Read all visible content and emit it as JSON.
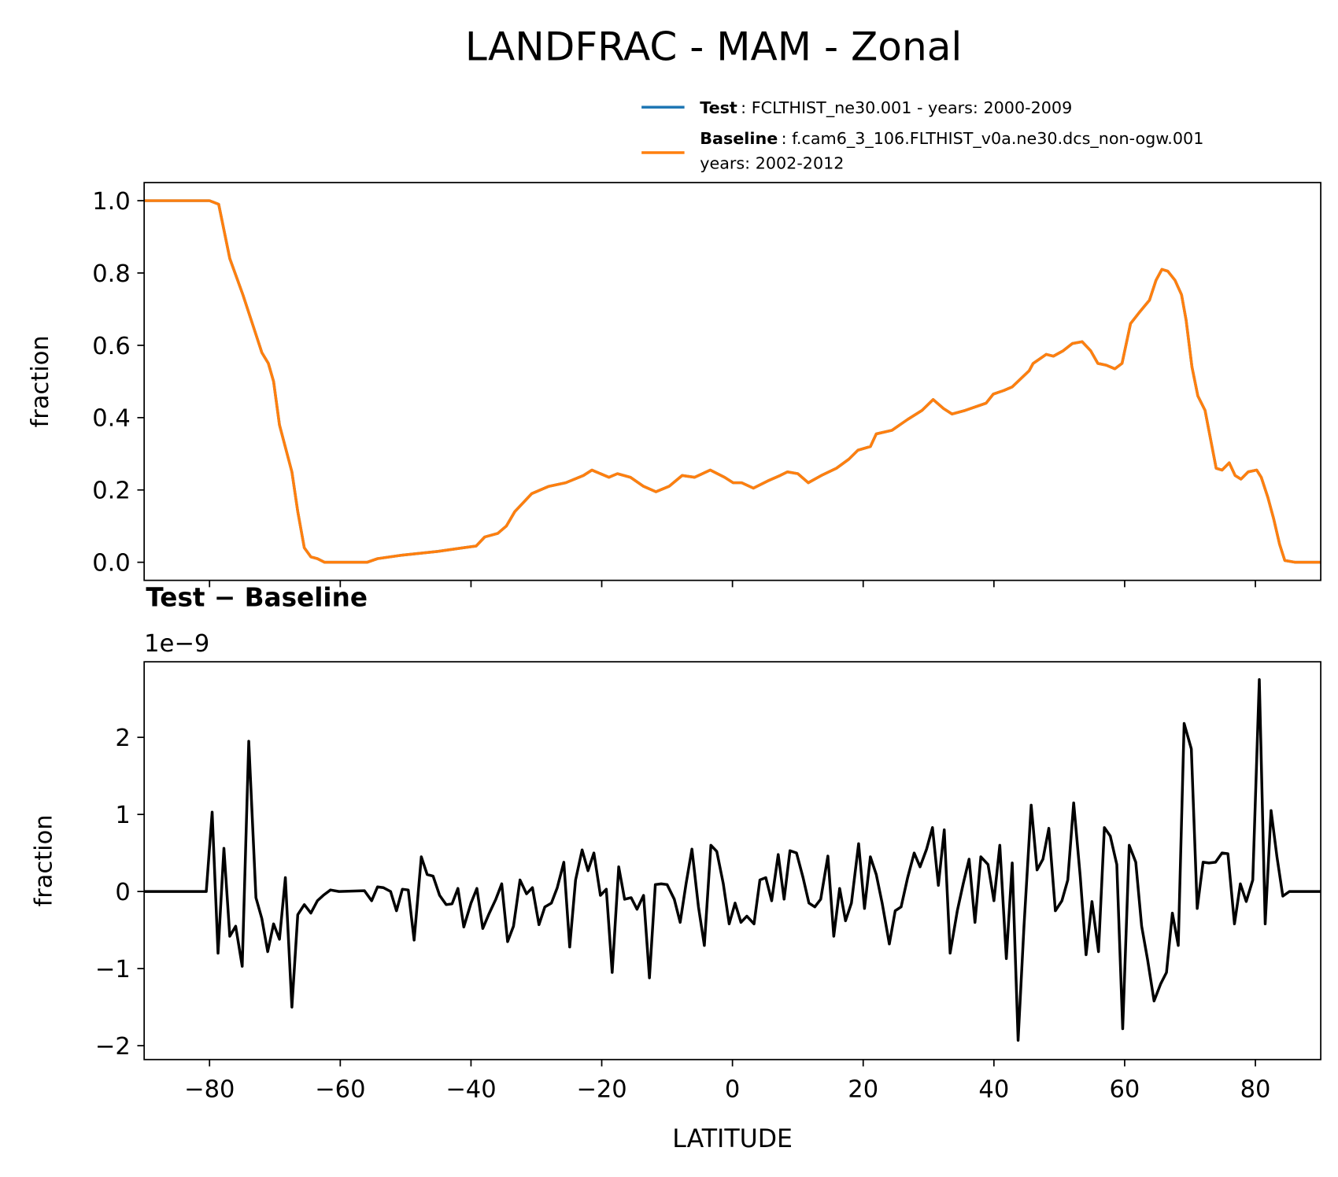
{
  "chart_data": [
    {
      "type": "line",
      "title": "LANDFRAC - MAM - Zonal",
      "ylabel": "fraction",
      "x": [
        -90,
        -80,
        -78.6,
        -76.9,
        -74.9,
        -72.9,
        -72,
        -71,
        -70.2,
        -69.3,
        -67.4,
        -66.5,
        -65.5,
        -64.5,
        -63.5,
        -62.4,
        -55.9,
        -54.3,
        -50.4,
        -45.1,
        -41.2,
        -39.2,
        -37.9,
        -35.9,
        -34.6,
        -33.3,
        -30.7,
        -28.1,
        -25.5,
        -22.8,
        -21.5,
        -18.9,
        -17.6,
        -15.6,
        -13.6,
        -11.7,
        -9.7,
        -7.7,
        -5.8,
        -3.4,
        -1.2,
        0.1,
        1.4,
        3.2,
        5.4,
        7.3,
        8.4,
        10,
        11.6,
        13.6,
        15.9,
        17.8,
        19.2,
        21.1,
        22,
        24.4,
        26.8,
        29,
        30.7,
        32.3,
        33.6,
        35.6,
        38.8,
        39.9,
        41.5,
        42.8,
        45.4,
        46,
        48,
        49.1,
        50.6,
        52,
        53.5,
        54.8,
        55.9,
        57.2,
        58.5,
        59.6,
        60.9,
        62.2,
        63.8,
        64.8,
        65.7,
        66.6,
        67.7,
        68.7,
        69.4,
        70.3,
        71.2,
        72.3,
        74,
        74.9,
        76,
        76.9,
        77.8,
        78.9,
        80.2,
        80.9,
        81.9,
        82.8,
        83.7,
        84.5,
        86.1,
        90
      ],
      "series": [
        {
          "name": "Test",
          "description": [
            ": FCLTHIST_ne30.001 - years: 2000-2009"
          ],
          "color": "#1f77b4",
          "values": [
            1,
            1,
            0.99,
            0.84,
            0.74,
            0.63,
            0.58,
            0.55,
            0.5,
            0.38,
            0.25,
            0.14,
            0.04,
            0.015,
            0.01,
            0,
            0,
            0.01,
            0.02,
            0.03,
            0.04,
            0.045,
            0.07,
            0.08,
            0.1,
            0.14,
            0.19,
            0.21,
            0.22,
            0.24,
            0.255,
            0.235,
            0.245,
            0.235,
            0.21,
            0.195,
            0.21,
            0.24,
            0.235,
            0.255,
            0.235,
            0.22,
            0.22,
            0.205,
            0.225,
            0.24,
            0.25,
            0.245,
            0.22,
            0.24,
            0.26,
            0.285,
            0.31,
            0.32,
            0.355,
            0.365,
            0.395,
            0.42,
            0.45,
            0.425,
            0.41,
            0.42,
            0.44,
            0.465,
            0.475,
            0.485,
            0.53,
            0.55,
            0.575,
            0.57,
            0.585,
            0.605,
            0.61,
            0.585,
            0.55,
            0.545,
            0.535,
            0.55,
            0.66,
            0.69,
            0.725,
            0.78,
            0.81,
            0.805,
            0.78,
            0.74,
            0.67,
            0.54,
            0.46,
            0.42,
            0.26,
            0.255,
            0.275,
            0.24,
            0.23,
            0.25,
            0.255,
            0.235,
            0.18,
            0.12,
            0.05,
            0.005,
            0,
            0
          ]
        },
        {
          "name": "Baseline",
          "description": [
            ": f.cam6_3_106.FLTHIST_v0a.ne30.dcs_non-ogw.001",
            "years: 2002-2012"
          ],
          "color": "#ff7f0e",
          "values": [
            1,
            1,
            0.99,
            0.84,
            0.74,
            0.63,
            0.58,
            0.55,
            0.5,
            0.38,
            0.25,
            0.14,
            0.04,
            0.015,
            0.01,
            0,
            0,
            0.01,
            0.02,
            0.03,
            0.04,
            0.045,
            0.07,
            0.08,
            0.1,
            0.14,
            0.19,
            0.21,
            0.22,
            0.24,
            0.255,
            0.235,
            0.245,
            0.235,
            0.21,
            0.195,
            0.21,
            0.24,
            0.235,
            0.255,
            0.235,
            0.22,
            0.22,
            0.205,
            0.225,
            0.24,
            0.25,
            0.245,
            0.22,
            0.24,
            0.26,
            0.285,
            0.31,
            0.32,
            0.355,
            0.365,
            0.395,
            0.42,
            0.45,
            0.425,
            0.41,
            0.42,
            0.44,
            0.465,
            0.475,
            0.485,
            0.53,
            0.55,
            0.575,
            0.57,
            0.585,
            0.605,
            0.61,
            0.585,
            0.55,
            0.545,
            0.535,
            0.55,
            0.66,
            0.69,
            0.725,
            0.78,
            0.81,
            0.805,
            0.78,
            0.74,
            0.67,
            0.54,
            0.46,
            0.42,
            0.26,
            0.255,
            0.275,
            0.24,
            0.23,
            0.25,
            0.255,
            0.235,
            0.18,
            0.12,
            0.05,
            0.005,
            0,
            0
          ]
        }
      ],
      "xlim": [
        -90,
        90
      ],
      "xticks": [
        -80,
        -60,
        -40,
        -20,
        0,
        20,
        40,
        60,
        80
      ],
      "ylim": [
        -0.05,
        1.05
      ],
      "yticks": [
        {
          "value": 0,
          "label": "0.0"
        },
        {
          "value": 0.2,
          "label": "0.2"
        },
        {
          "value": 0.4,
          "label": "0.4"
        },
        {
          "value": 0.6,
          "label": "0.6"
        },
        {
          "value": 0.8,
          "label": "0.8"
        },
        {
          "value": 1,
          "label": "1.0"
        }
      ],
      "legend": "upper right"
    },
    {
      "type": "line",
      "title": "Test − Baseline",
      "offset_label": "1e−9",
      "xlabel": "LATITUDE",
      "ylabel": "fraction",
      "x": [
        -90,
        -80.5,
        -79.6,
        -78.7,
        -77.8,
        -76.9,
        -76,
        -75,
        -74,
        -72.9,
        -72,
        -71.1,
        -70.2,
        -69.3,
        -68.4,
        -67.4,
        -66.5,
        -65.5,
        -64.5,
        -63.5,
        -62.6,
        -61.5,
        -60.2,
        -56.3,
        -55.2,
        -54.3,
        -53.4,
        -52.3,
        -51.4,
        -50.5,
        -49.6,
        -48.7,
        -47.6,
        -46.7,
        -45.8,
        -44.8,
        -43.8,
        -42.9,
        -42,
        -41.1,
        -40,
        -39.1,
        -38.2,
        -37.3,
        -36.2,
        -35.3,
        -34.4,
        -33.5,
        -32.5,
        -31.5,
        -30.6,
        -29.6,
        -28.7,
        -27.7,
        -26.8,
        -25.8,
        -24.9,
        -24,
        -23,
        -22.1,
        -21.2,
        -20.2,
        -19.3,
        -18.4,
        -17.4,
        -16.5,
        -15.5,
        -14.6,
        -13.6,
        -12.7,
        -11.8,
        -10.9,
        -10,
        -8.9,
        -8,
        -7.1,
        -6.2,
        -5.2,
        -4.3,
        -3.3,
        -2.4,
        -1.4,
        -0.5,
        0.4,
        1.3,
        2.2,
        3.3,
        4.2,
        5.1,
        6,
        7,
        7.9,
        8.8,
        9.8,
        10.8,
        11.7,
        12.6,
        13.5,
        14.6,
        15.5,
        16.4,
        17.3,
        18.2,
        19.3,
        20.2,
        21.1,
        22,
        22.9,
        24,
        24.9,
        25.8,
        26.8,
        27.8,
        28.7,
        29.7,
        30.6,
        31.5,
        32.4,
        33.3,
        34.4,
        35.3,
        36.2,
        37.1,
        38,
        39.1,
        40,
        40.9,
        41.9,
        42.8,
        43.7,
        44.6,
        45.7,
        46.6,
        47.5,
        48.4,
        49.4,
        50.4,
        51.3,
        52.2,
        53.2,
        54.1,
        55,
        56,
        56.9,
        57.8,
        58.8,
        59.7,
        60.7,
        61.7,
        62.6,
        63.5,
        64.5,
        65.5,
        66.4,
        67.3,
        68.2,
        69.1,
        70.2,
        71.1,
        72,
        72.9,
        73.9,
        74.9,
        75.8,
        76.8,
        77.7,
        78.6,
        79.6,
        80.6,
        81.5,
        82.4,
        83.3,
        84.2,
        85.2,
        90
      ],
      "series": [
        {
          "name": "Test − Baseline",
          "color": "#000000",
          "values": [
            0,
            0,
            1.03,
            -0.8,
            0.56,
            -0.58,
            -0.45,
            -0.97,
            1.95,
            -0.08,
            -0.35,
            -0.78,
            -0.42,
            -0.62,
            0.18,
            -1.5,
            -0.3,
            -0.17,
            -0.28,
            -0.12,
            -0.05,
            0.02,
            0,
            0.01,
            -0.12,
            0.06,
            0.05,
            0,
            -0.25,
            0.03,
            0.02,
            -0.63,
            0.45,
            0.22,
            0.2,
            -0.05,
            -0.17,
            -0.16,
            0.04,
            -0.46,
            -0.15,
            0.04,
            -0.48,
            -0.3,
            -0.1,
            0.1,
            -0.65,
            -0.45,
            0.15,
            -0.03,
            0.05,
            -0.43,
            -0.2,
            -0.15,
            0.05,
            0.38,
            -0.72,
            0.15,
            0.54,
            0.27,
            0.5,
            -0.05,
            0.03,
            -1.05,
            0.32,
            -0.1,
            -0.08,
            -0.23,
            -0.05,
            -1.12,
            0.09,
            0.1,
            0.09,
            -0.1,
            -0.4,
            0.1,
            0.55,
            -0.2,
            -0.7,
            0.6,
            0.52,
            0.1,
            -0.42,
            -0.15,
            -0.4,
            -0.32,
            -0.42,
            0.15,
            0.18,
            -0.12,
            0.48,
            -0.1,
            0.53,
            0.5,
            0.18,
            -0.15,
            -0.2,
            -0.1,
            0.46,
            -0.58,
            0.04,
            -0.38,
            -0.15,
            0.62,
            -0.22,
            0.45,
            0.22,
            -0.15,
            -0.68,
            -0.25,
            -0.2,
            0.18,
            0.5,
            0.32,
            0.55,
            0.83,
            0.08,
            0.8,
            -0.8,
            -0.25,
            0.1,
            0.42,
            -0.4,
            0.45,
            0.35,
            -0.12,
            0.6,
            -0.87,
            0.37,
            -1.93,
            -0.45,
            1.12,
            0.28,
            0.42,
            0.82,
            -0.25,
            -0.12,
            0.15,
            1.15,
            0.2,
            -0.82,
            -0.13,
            -0.78,
            0.83,
            0.72,
            0.35,
            -1.78,
            0.6,
            0.38,
            -0.45,
            -0.88,
            -1.42,
            -1.2,
            -1.05,
            -0.28,
            -0.7,
            2.18,
            1.85,
            -0.22,
            0.38,
            0.37,
            0.38,
            0.5,
            0.49,
            -0.42,
            0.1,
            -0.13,
            0.15,
            2.75,
            -0.42,
            1.05,
            0.45,
            -0.06,
            0,
            0
          ]
        }
      ],
      "xlim": [
        -90,
        90
      ],
      "xticks": [
        {
          "value": -80,
          "label": "−80"
        },
        {
          "value": -60,
          "label": "−60"
        },
        {
          "value": -40,
          "label": "−40"
        },
        {
          "value": -20,
          "label": "−20"
        },
        0,
        20,
        40,
        60,
        80
      ],
      "ylim": [
        -2.18,
        2.98
      ],
      "yticks": [
        {
          "value": -2,
          "label": "−2"
        },
        {
          "value": -1,
          "label": "−1"
        },
        0,
        1,
        2
      ]
    }
  ]
}
